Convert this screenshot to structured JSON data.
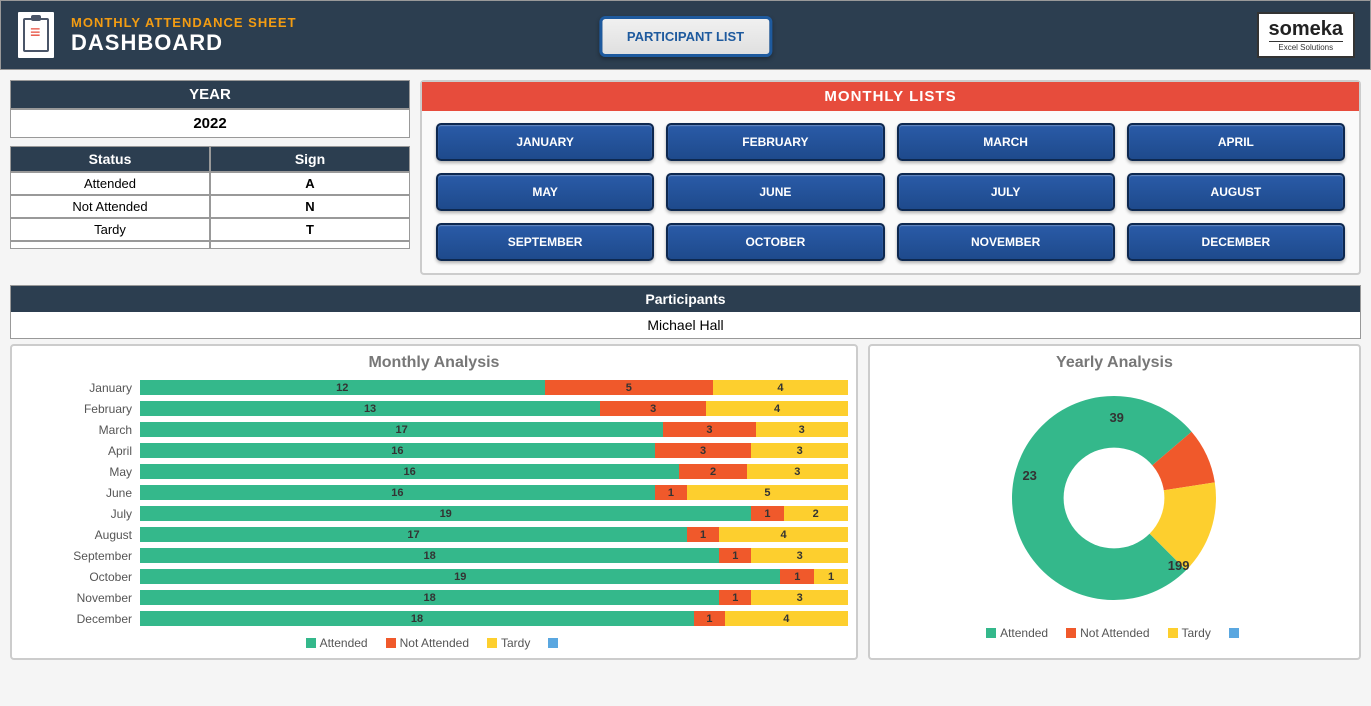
{
  "header": {
    "subtitle": "MONTHLY ATTENDANCE SHEET",
    "title": "DASHBOARD",
    "participant_btn": "PARTICIPANT LIST",
    "logo_main": "someka",
    "logo_sub": "Excel Solutions"
  },
  "year": {
    "label": "YEAR",
    "value": "2022"
  },
  "status": {
    "col1": "Status",
    "col2": "Sign",
    "rows": [
      {
        "status": "Attended",
        "sign": "A"
      },
      {
        "status": "Not Attended",
        "sign": "N"
      },
      {
        "status": "Tardy",
        "sign": "T"
      },
      {
        "status": "",
        "sign": ""
      }
    ]
  },
  "monthly_lists": {
    "title": "MONTHLY LISTS",
    "months": [
      "JANUARY",
      "FEBRUARY",
      "MARCH",
      "APRIL",
      "MAY",
      "JUNE",
      "JULY",
      "AUGUST",
      "SEPTEMBER",
      "OCTOBER",
      "NOVEMBER",
      "DECEMBER"
    ]
  },
  "participants": {
    "label": "Participants",
    "value": "Michael Hall"
  },
  "colors": {
    "attended": "#34b88b",
    "not_attended": "#f0592b",
    "tardy": "#fdcf2e",
    "blank": "#5aa7e0",
    "header_dark": "#2c3e50",
    "header_orange": "#e74c3c",
    "month_btn": "#1e4a8c"
  },
  "monthly_chart": {
    "title": "Monthly Analysis",
    "max": 22,
    "rows": [
      {
        "label": "January",
        "attended": 12,
        "not_attended": 5,
        "tardy": 4
      },
      {
        "label": "February",
        "attended": 13,
        "not_attended": 3,
        "tardy": 4
      },
      {
        "label": "March",
        "attended": 17,
        "not_attended": 3,
        "tardy": 3
      },
      {
        "label": "April",
        "attended": 16,
        "not_attended": 3,
        "tardy": 3
      },
      {
        "label": "May",
        "attended": 16,
        "not_attended": 2,
        "tardy": 3
      },
      {
        "label": "June",
        "attended": 16,
        "not_attended": 1,
        "tardy": 5
      },
      {
        "label": "July",
        "attended": 19,
        "not_attended": 1,
        "tardy": 2
      },
      {
        "label": "August",
        "attended": 17,
        "not_attended": 1,
        "tardy": 4
      },
      {
        "label": "September",
        "attended": 18,
        "not_attended": 1,
        "tardy": 3
      },
      {
        "label": "October",
        "attended": 19,
        "not_attended": 1,
        "tardy": 1
      },
      {
        "label": "November",
        "attended": 18,
        "not_attended": 1,
        "tardy": 3
      },
      {
        "label": "December",
        "attended": 18,
        "not_attended": 1,
        "tardy": 4
      }
    ]
  },
  "yearly_chart": {
    "title": "Yearly Analysis",
    "attended": 199,
    "not_attended": 23,
    "tardy": 39
  },
  "legend": {
    "attended": "Attended",
    "not_attended": "Not Attended",
    "tardy": "Tardy"
  }
}
